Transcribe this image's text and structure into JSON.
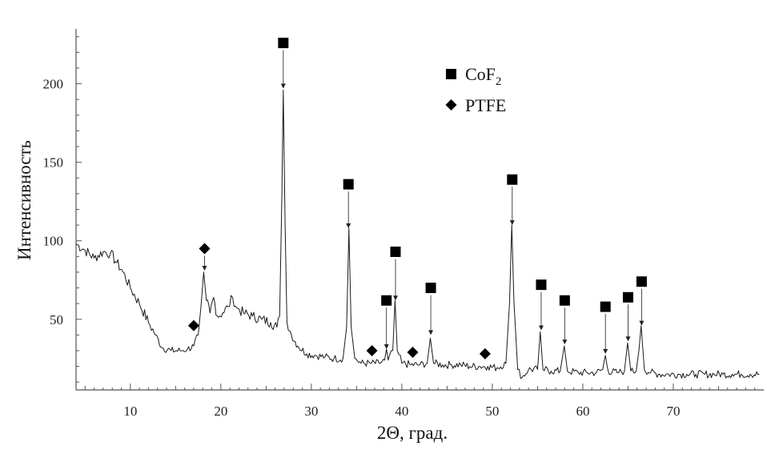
{
  "chart_data": {
    "type": "line",
    "xlabel": "2Θ, град.",
    "ylabel": "Интенсивность",
    "xlim": [
      4,
      80
    ],
    "ylim": [
      5,
      235
    ],
    "x_ticks": [
      10,
      20,
      30,
      40,
      50,
      60,
      70
    ],
    "y_ticks": [
      50,
      100,
      150,
      200
    ],
    "grid": false,
    "legend_position": "top-center",
    "legend": [
      {
        "symbol": "square",
        "label": "CoF",
        "subscript": "2"
      },
      {
        "symbol": "diamond",
        "label": "PTFE",
        "subscript": ""
      }
    ],
    "series": [
      {
        "points": [
          [
            4,
            98
          ],
          [
            5,
            94
          ],
          [
            6,
            89
          ],
          [
            7,
            93
          ],
          [
            7.8,
            92
          ],
          [
            8.5,
            86
          ],
          [
            9.2,
            80
          ],
          [
            10,
            70
          ],
          [
            11,
            60
          ],
          [
            12,
            48
          ],
          [
            12.8,
            40
          ],
          [
            13.5,
            32
          ],
          [
            14.5,
            30
          ],
          [
            15.5,
            30
          ],
          [
            16.3,
            31
          ],
          [
            17,
            33
          ],
          [
            17.5,
            40
          ],
          [
            17.8,
            58
          ],
          [
            18.1,
            80
          ],
          [
            18.4,
            62
          ],
          [
            18.8,
            54
          ],
          [
            19.2,
            64
          ],
          [
            19.6,
            52
          ],
          [
            20.2,
            54
          ],
          [
            20.8,
            58
          ],
          [
            21.3,
            64
          ],
          [
            21.8,
            57
          ],
          [
            22.5,
            54
          ],
          [
            23.5,
            52
          ],
          [
            24.5,
            50
          ],
          [
            25.5,
            48
          ],
          [
            26.2,
            45
          ],
          [
            26.5,
            52
          ],
          [
            26.75,
            130
          ],
          [
            26.9,
            196
          ],
          [
            27.1,
            110
          ],
          [
            27.3,
            48
          ],
          [
            27.8,
            40
          ],
          [
            28.5,
            33
          ],
          [
            29.5,
            28
          ],
          [
            30.5,
            27
          ],
          [
            31.5,
            26
          ],
          [
            32.5,
            25
          ],
          [
            33.5,
            25
          ],
          [
            33.9,
            45
          ],
          [
            34.15,
            108
          ],
          [
            34.4,
            45
          ],
          [
            34.8,
            25
          ],
          [
            35.5,
            22
          ],
          [
            36.5,
            22
          ],
          [
            37.5,
            22
          ],
          [
            38.1,
            24
          ],
          [
            38.3,
            31
          ],
          [
            38.5,
            24
          ],
          [
            39.0,
            30
          ],
          [
            39.25,
            62
          ],
          [
            39.5,
            30
          ],
          [
            40,
            22
          ],
          [
            41,
            21
          ],
          [
            42,
            21
          ],
          [
            42.8,
            22
          ],
          [
            43.15,
            38
          ],
          [
            43.5,
            22
          ],
          [
            44.5,
            21
          ],
          [
            45.5,
            21
          ],
          [
            46.5,
            21
          ],
          [
            47.5,
            20
          ],
          [
            48.5,
            20
          ],
          [
            49.5,
            20
          ],
          [
            50.5,
            19
          ],
          [
            51.5,
            22
          ],
          [
            51.9,
            60
          ],
          [
            52.15,
            110
          ],
          [
            52.4,
            60
          ],
          [
            52.8,
            18
          ],
          [
            53.3,
            13
          ],
          [
            54,
            18
          ],
          [
            55,
            18
          ],
          [
            55.3,
            42
          ],
          [
            55.6,
            18
          ],
          [
            56.5,
            17
          ],
          [
            57.5,
            17
          ],
          [
            57.95,
            33
          ],
          [
            58.3,
            17
          ],
          [
            59.5,
            16
          ],
          [
            60.5,
            16
          ],
          [
            61.5,
            16
          ],
          [
            62.2,
            18
          ],
          [
            62.5,
            27
          ],
          [
            62.8,
            17
          ],
          [
            63.8,
            16
          ],
          [
            64.6,
            17
          ],
          [
            64.95,
            35
          ],
          [
            65.3,
            17
          ],
          [
            65.9,
            17
          ],
          [
            66.2,
            30
          ],
          [
            66.45,
            46
          ],
          [
            66.8,
            18
          ],
          [
            67.5,
            16
          ],
          [
            68.5,
            15
          ],
          [
            69.5,
            15
          ],
          [
            70.5,
            15
          ],
          [
            71.5,
            15
          ],
          [
            72.5,
            15
          ],
          [
            73.5,
            15
          ],
          [
            74.5,
            15
          ],
          [
            75.5,
            15
          ],
          [
            76.5,
            15
          ],
          [
            77.5,
            15
          ],
          [
            78.5,
            15
          ],
          [
            79.5,
            15
          ]
        ]
      }
    ],
    "phase_markers": [
      {
        "phase": "PTFE",
        "symbol": "diamond",
        "x": 17.0,
        "marker_y": 46,
        "arrow_to": null
      },
      {
        "phase": "PTFE",
        "symbol": "diamond",
        "x": 18.2,
        "marker_y": 95,
        "arrow_to": 81
      },
      {
        "phase": "CoF2",
        "symbol": "square",
        "x": 26.9,
        "marker_y": 226,
        "arrow_to": 197
      },
      {
        "phase": "CoF2",
        "symbol": "square",
        "x": 34.1,
        "marker_y": 136,
        "arrow_to": 108
      },
      {
        "phase": "PTFE",
        "symbol": "diamond",
        "x": 36.7,
        "marker_y": 30,
        "arrow_to": null
      },
      {
        "phase": "CoF2",
        "symbol": "square",
        "x": 38.3,
        "marker_y": 62,
        "arrow_to": 31
      },
      {
        "phase": "CoF2",
        "symbol": "square",
        "x": 39.3,
        "marker_y": 93,
        "arrow_to": 62
      },
      {
        "phase": "PTFE",
        "symbol": "diamond",
        "x": 41.2,
        "marker_y": 29,
        "arrow_to": null
      },
      {
        "phase": "CoF2",
        "symbol": "square",
        "x": 43.2,
        "marker_y": 70,
        "arrow_to": 40
      },
      {
        "phase": "PTFE",
        "symbol": "diamond",
        "x": 49.2,
        "marker_y": 28,
        "arrow_to": null
      },
      {
        "phase": "CoF2",
        "symbol": "square",
        "x": 52.2,
        "marker_y": 139,
        "arrow_to": 110
      },
      {
        "phase": "CoF2",
        "symbol": "square",
        "x": 55.4,
        "marker_y": 72,
        "arrow_to": 43
      },
      {
        "phase": "CoF2",
        "symbol": "square",
        "x": 58.0,
        "marker_y": 62,
        "arrow_to": 34
      },
      {
        "phase": "CoF2",
        "symbol": "square",
        "x": 62.5,
        "marker_y": 58,
        "arrow_to": 28
      },
      {
        "phase": "CoF2",
        "symbol": "square",
        "x": 65.0,
        "marker_y": 64,
        "arrow_to": 36
      },
      {
        "phase": "CoF2",
        "symbol": "square",
        "x": 66.5,
        "marker_y": 74,
        "arrow_to": 46
      }
    ]
  }
}
